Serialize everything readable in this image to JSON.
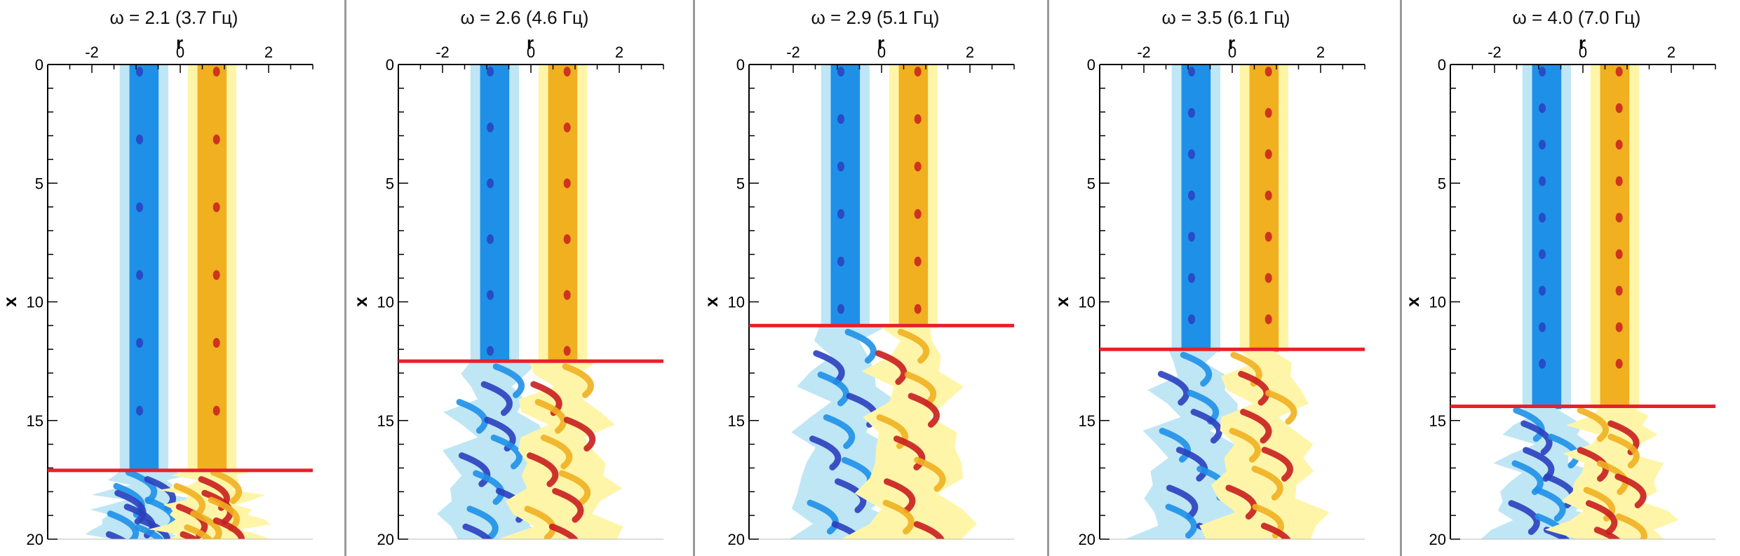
{
  "chart_data": [
    {
      "type": "heatmap",
      "title": "ω = 2.1 (3.7 Гц)",
      "xlabel": "r",
      "ylabel": "x",
      "xlim": [
        -3,
        3
      ],
      "ylim": [
        0,
        20
      ],
      "y_inverted": true,
      "x_ticks": [
        "-2",
        "0",
        "2"
      ],
      "y_ticks": [
        "0",
        "5",
        "10",
        "15",
        "20"
      ],
      "colormap": "blue-white-red diverging",
      "transition_line_x": 17.1,
      "transition_line_color": "#e8202a"
    },
    {
      "type": "heatmap",
      "title": "ω = 2.6 (4.6 Гц)",
      "xlabel": "r",
      "ylabel": "x",
      "xlim": [
        -3,
        3
      ],
      "ylim": [
        0,
        20
      ],
      "y_inverted": true,
      "x_ticks": [
        "-2",
        "0",
        "2"
      ],
      "y_ticks": [
        "0",
        "5",
        "10",
        "15",
        "20"
      ],
      "colormap": "blue-white-red diverging",
      "transition_line_x": 12.5,
      "transition_line_color": "#e8202a"
    },
    {
      "type": "heatmap",
      "title": "ω = 2.9 (5.1 Гц)",
      "xlabel": "r",
      "ylabel": "x",
      "xlim": [
        -3,
        3
      ],
      "ylim": [
        0,
        20
      ],
      "y_inverted": true,
      "x_ticks": [
        "-2",
        "0",
        "2"
      ],
      "y_ticks": [
        "0",
        "5",
        "10",
        "15",
        "20"
      ],
      "colormap": "blue-white-red diverging",
      "transition_line_x": 11.0,
      "transition_line_color": "#e8202a"
    },
    {
      "type": "heatmap",
      "title": "ω = 3.5 (6.1 Гц)",
      "xlabel": "r",
      "ylabel": "x",
      "xlim": [
        -3,
        3
      ],
      "ylim": [
        0,
        20
      ],
      "y_inverted": true,
      "x_ticks": [
        "-2",
        "0",
        "2"
      ],
      "y_ticks": [
        "0",
        "5",
        "10",
        "15",
        "20"
      ],
      "colormap": "blue-white-red diverging",
      "transition_line_x": 12.0,
      "transition_line_color": "#e8202a"
    },
    {
      "type": "heatmap",
      "title": "ω = 4.0 (7.0 Гц)",
      "xlabel": "r",
      "ylabel": "x",
      "xlim": [
        -3,
        3
      ],
      "ylim": [
        0,
        20
      ],
      "y_inverted": true,
      "x_ticks": [
        "-2",
        "0",
        "2"
      ],
      "y_ticks": [
        "0",
        "5",
        "10",
        "15",
        "20"
      ],
      "colormap": "blue-white-red diverging",
      "transition_line_x": 14.4,
      "transition_line_color": "#e8202a"
    }
  ],
  "colors": {
    "separator": "#9a9a9a",
    "vorticity_negative": "#1e90e8",
    "vorticity_negative_strong": "#2a3fbf",
    "vorticity_positive": "#f0b020",
    "vorticity_positive_strong": "#c81e1e",
    "halo_negative": "#bfe6f5",
    "halo_positive": "#fff5a8"
  }
}
